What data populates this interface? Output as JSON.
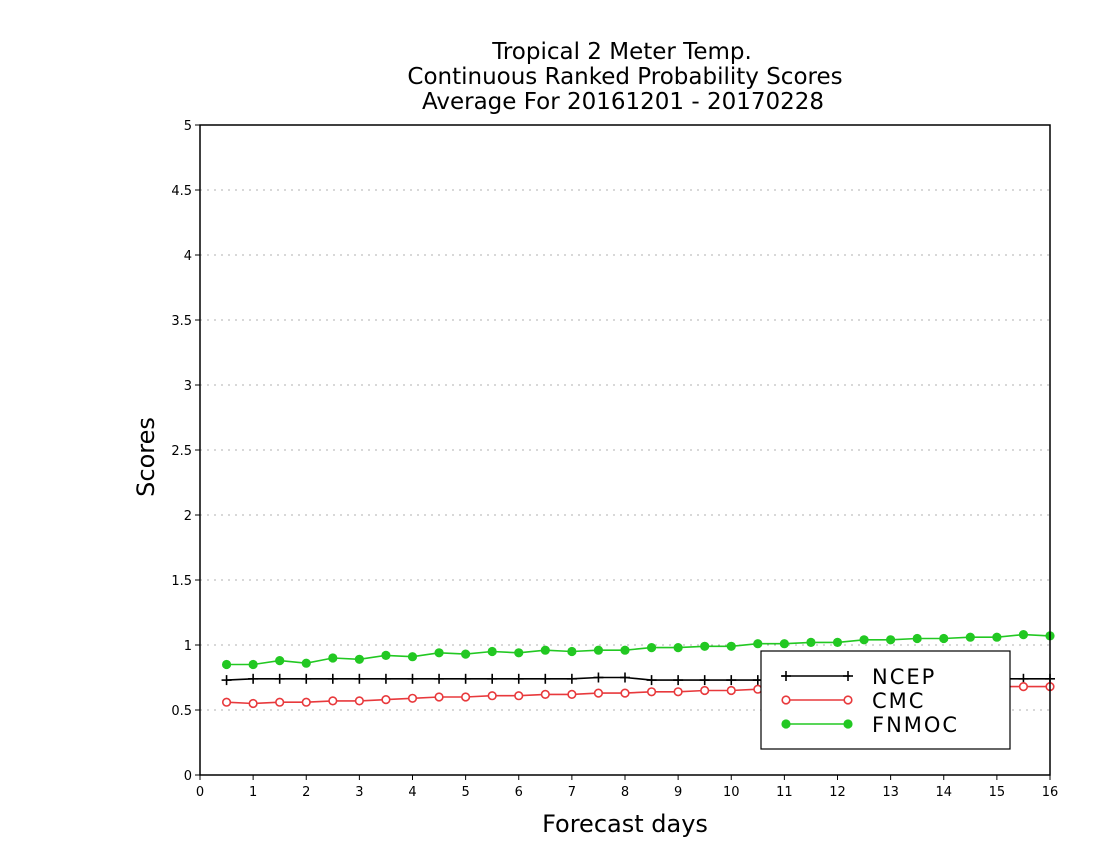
{
  "chart_data": {
    "type": "line",
    "title": [
      "Tropical 2 Meter Temp.",
      "Continuous Ranked Probability Scores",
      "Average For 20161201 - 20170228"
    ],
    "xlabel": "Forecast days",
    "ylabel": "Scores",
    "xlim": [
      0,
      16
    ],
    "ylim": [
      0,
      5
    ],
    "x_ticks": [
      0,
      1,
      2,
      3,
      4,
      5,
      6,
      7,
      8,
      9,
      10,
      11,
      12,
      13,
      14,
      15,
      16
    ],
    "y_ticks": [
      0,
      0.5,
      1,
      1.5,
      2,
      2.5,
      3,
      3.5,
      4,
      4.5,
      5
    ],
    "y_tick_labels": [
      "0",
      "0.5",
      "1",
      "1.5",
      "2",
      "2.5",
      "3",
      "3.5",
      "4",
      "4.5",
      "5"
    ],
    "grid": "horizontal dotted",
    "legend_position": "bottom-right",
    "x": [
      0.5,
      1.0,
      1.5,
      2.0,
      2.5,
      3.0,
      3.5,
      4.0,
      4.5,
      5.0,
      5.5,
      6.0,
      6.5,
      7.0,
      7.5,
      8.0,
      8.5,
      9.0,
      9.5,
      10.0,
      10.5,
      11.0,
      11.5,
      12.0,
      12.5,
      13.0,
      13.5,
      14.0,
      14.5,
      15.0,
      15.5,
      16.0
    ],
    "series": [
      {
        "name": "NCEP",
        "color": "#000000",
        "marker": "plus",
        "values": [
          0.73,
          0.74,
          0.74,
          0.74,
          0.74,
          0.74,
          0.74,
          0.74,
          0.74,
          0.74,
          0.74,
          0.74,
          0.74,
          0.74,
          0.75,
          0.75,
          0.73,
          0.73,
          0.73,
          0.73,
          0.73,
          0.73,
          0.73,
          0.73,
          0.73,
          0.73,
          0.73,
          0.73,
          0.73,
          0.74,
          0.74,
          0.74
        ]
      },
      {
        "name": "CMC",
        "color": "#e8393c",
        "marker": "open-circle",
        "values": [
          0.56,
          0.55,
          0.56,
          0.56,
          0.57,
          0.57,
          0.58,
          0.59,
          0.6,
          0.6,
          0.61,
          0.61,
          0.62,
          0.62,
          0.63,
          0.63,
          0.64,
          0.64,
          0.65,
          0.65,
          0.66,
          0.66,
          0.66,
          0.67,
          0.67,
          0.67,
          0.67,
          0.67,
          0.68,
          0.68,
          0.68,
          0.68
        ]
      },
      {
        "name": "FNMOC",
        "color": "#22c822",
        "marker": "filled-circle",
        "values": [
          0.85,
          0.85,
          0.88,
          0.86,
          0.9,
          0.89,
          0.92,
          0.91,
          0.94,
          0.93,
          0.95,
          0.94,
          0.96,
          0.95,
          0.96,
          0.96,
          0.98,
          0.98,
          0.99,
          0.99,
          1.01,
          1.01,
          1.02,
          1.02,
          1.04,
          1.04,
          1.05,
          1.05,
          1.06,
          1.06,
          1.08,
          1.07
        ]
      }
    ]
  }
}
